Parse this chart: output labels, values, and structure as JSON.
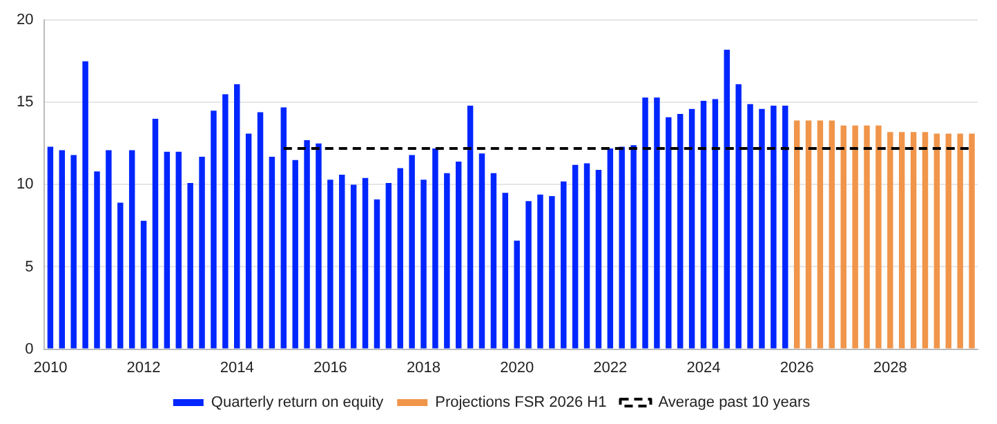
{
  "chart_data": {
    "type": "bar",
    "categories": [
      "2010",
      null,
      null,
      null,
      null,
      null,
      null,
      null,
      "2012",
      null,
      null,
      null,
      null,
      null,
      null,
      null,
      "2014",
      null,
      null,
      null,
      null,
      null,
      null,
      null,
      "2016",
      null,
      null,
      null,
      null,
      null,
      null,
      null,
      "2018",
      null,
      null,
      null,
      null,
      null,
      null,
      null,
      "2020",
      null,
      null,
      null,
      null,
      null,
      null,
      null,
      "2022",
      null,
      null,
      null,
      null,
      null,
      null,
      null,
      "2024",
      null,
      null,
      null,
      null,
      null,
      null,
      null,
      "2026",
      null,
      null,
      null,
      null,
      null,
      null,
      null,
      "2028",
      null,
      null,
      null,
      null,
      null,
      null,
      null
    ],
    "series": [
      {
        "name": "Quarterly return on equity",
        "color": "#0026ff",
        "values": [
          12.3,
          12.1,
          11.8,
          17.5,
          10.8,
          12.1,
          8.9,
          12.1,
          7.8,
          14.0,
          12.0,
          12.0,
          10.1,
          11.7,
          14.5,
          15.5,
          16.1,
          13.1,
          14.4,
          11.7,
          14.7,
          11.5,
          12.7,
          12.5,
          10.3,
          10.6,
          10.0,
          10.4,
          9.1,
          10.1,
          11.0,
          11.8,
          10.3,
          12.2,
          10.7,
          11.4,
          14.8,
          11.9,
          10.7,
          9.5,
          6.6,
          9.0,
          9.4,
          9.3,
          10.2,
          11.2,
          11.3,
          10.9,
          12.2,
          12.3,
          12.4,
          15.3,
          15.3,
          14.1,
          14.3,
          14.6,
          15.1,
          15.2,
          18.2,
          16.1,
          14.9,
          14.6,
          14.8,
          14.8,
          null,
          null,
          null,
          null,
          null,
          null,
          null,
          null,
          null,
          null,
          null,
          null,
          null,
          null,
          null,
          null
        ]
      },
      {
        "name": "Projections FSR 2026 H1",
        "color": "#f0954a",
        "values": [
          null,
          null,
          null,
          null,
          null,
          null,
          null,
          null,
          null,
          null,
          null,
          null,
          null,
          null,
          null,
          null,
          null,
          null,
          null,
          null,
          null,
          null,
          null,
          null,
          null,
          null,
          null,
          null,
          null,
          null,
          null,
          null,
          null,
          null,
          null,
          null,
          null,
          null,
          null,
          null,
          null,
          null,
          null,
          null,
          null,
          null,
          null,
          null,
          null,
          null,
          null,
          null,
          null,
          null,
          null,
          null,
          null,
          null,
          null,
          null,
          null,
          null,
          null,
          null,
          13.9,
          13.9,
          13.9,
          13.9,
          13.6,
          13.6,
          13.6,
          13.6,
          13.2,
          13.2,
          13.2,
          13.2,
          13.1,
          13.1,
          13.1,
          13.1
        ]
      },
      {
        "name": "Average past 10 years",
        "type": "line",
        "color": "#000000",
        "line_style": "dashed",
        "values": [
          null,
          null,
          null,
          null,
          null,
          null,
          null,
          null,
          null,
          null,
          null,
          null,
          null,
          null,
          null,
          null,
          null,
          null,
          null,
          null,
          12.2,
          12.2,
          12.2,
          12.2,
          12.2,
          12.2,
          12.2,
          12.2,
          12.2,
          12.2,
          12.2,
          12.2,
          12.2,
          12.2,
          12.2,
          12.2,
          12.2,
          12.2,
          12.2,
          12.2,
          12.2,
          12.2,
          12.2,
          12.2,
          12.2,
          12.2,
          12.2,
          12.2,
          12.2,
          12.2,
          12.2,
          12.2,
          12.2,
          12.2,
          12.2,
          12.2,
          12.2,
          12.2,
          12.2,
          12.2,
          12.2,
          12.2,
          12.2,
          12.2,
          12.2,
          12.2,
          12.2,
          12.2,
          12.2,
          12.2,
          12.2,
          12.2,
          12.2,
          12.2,
          12.2,
          12.2,
          12.2,
          12.2,
          12.2,
          12.2
        ]
      }
    ],
    "ylim": [
      0,
      20
    ],
    "yticks": [
      0,
      5,
      10,
      15,
      20
    ],
    "grid": "y",
    "legend": "bottom",
    "marker": "none"
  }
}
